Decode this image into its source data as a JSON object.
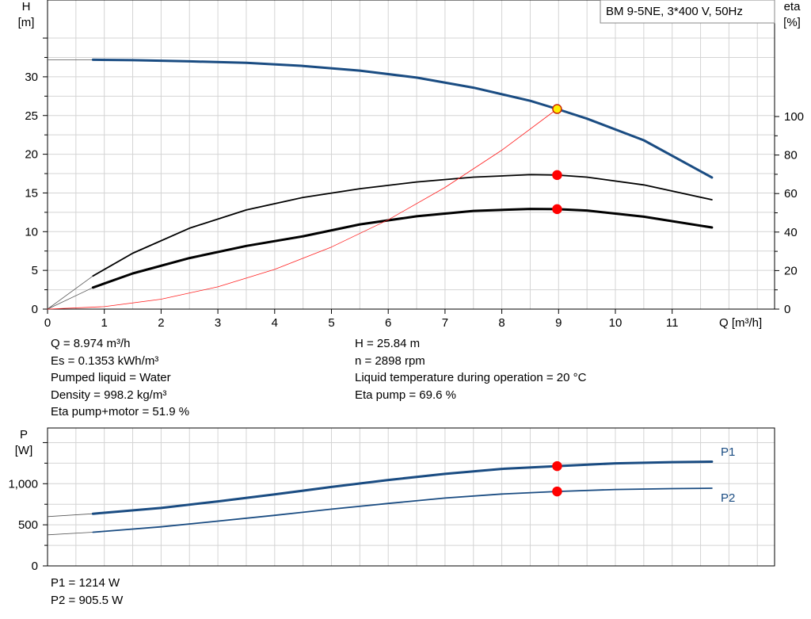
{
  "chart_data": [
    {
      "type": "line",
      "title": "BM 9-5NE, 3*400 V, 50Hz",
      "xlabel": "Q [m³/h]",
      "ylabel": [
        "H",
        "[m]"
      ],
      "y2label": [
        "eta",
        "[%]"
      ],
      "xlim": [
        0,
        12.8
      ],
      "ylim": [
        0,
        35
      ],
      "y2lim": [
        0,
        112
      ],
      "x_ticks": [
        "0",
        "1",
        "2",
        "3",
        "4",
        "5",
        "6",
        "7",
        "8",
        "9",
        "10",
        "11"
      ],
      "y_ticks": [
        "0",
        "5",
        "10",
        "15",
        "20",
        "25",
        "30"
      ],
      "y2_ticks": [
        "0",
        "20",
        "40",
        "60",
        "80",
        "100"
      ],
      "grid": true,
      "series": [
        {
          "key": "head",
          "axis": "y",
          "color": "#1a4c82",
          "width": 3,
          "x": [
            0.8,
            1.5,
            2.5,
            3.5,
            4.5,
            5.5,
            6.5,
            7.5,
            8.5,
            8.974,
            9.5,
            10.5,
            11.7
          ],
          "y": [
            32.2,
            32.15,
            32.0,
            31.8,
            31.4,
            30.8,
            29.9,
            28.6,
            26.9,
            25.84,
            24.6,
            21.8,
            17.0
          ],
          "ext_x": [
            0,
            0.8
          ],
          "ext_y": [
            32.2,
            32.2
          ]
        },
        {
          "key": "eta_pump",
          "axis": "y2",
          "color": "#000000",
          "width": 1.8,
          "x": [
            0.8,
            1.5,
            2.5,
            3.5,
            4.5,
            5.5,
            6.5,
            7.5,
            8.5,
            8.974,
            9.5,
            10.5,
            11.7
          ],
          "y": [
            17.2,
            29.0,
            42.0,
            51.5,
            58.0,
            62.5,
            66.0,
            68.5,
            69.8,
            69.6,
            68.5,
            64.5,
            56.8
          ],
          "ext_x": [
            0,
            0.8
          ],
          "ext_y": [
            0,
            17.2
          ]
        },
        {
          "key": "eta_total",
          "axis": "y2",
          "color": "#000000",
          "width": 3,
          "x": [
            0.8,
            1.5,
            2.5,
            3.5,
            4.5,
            5.5,
            6.5,
            7.5,
            8.5,
            8.974,
            9.5,
            10.5,
            11.7
          ],
          "y": [
            11.2,
            18.5,
            26.5,
            32.8,
            37.8,
            44.0,
            48.2,
            51.0,
            52.0,
            51.9,
            51.2,
            48.0,
            42.4
          ],
          "ext_x": [
            0,
            0.8
          ],
          "ext_y": [
            0,
            11.2
          ]
        },
        {
          "key": "system_curve",
          "axis": "y",
          "color": "#ff2020",
          "width": 0.8,
          "x": [
            0,
            1,
            2,
            3,
            4,
            5,
            6,
            7,
            8,
            8.974
          ],
          "y": [
            0,
            0.32,
            1.28,
            2.88,
            5.13,
            8.01,
            11.54,
            15.71,
            20.52,
            25.84
          ]
        }
      ],
      "points": [
        {
          "x": 8.974,
          "y": 25.84,
          "axis": "y",
          "color": "#ffee00",
          "stroke": "#cc2a00"
        },
        {
          "x": 8.974,
          "y": 69.6,
          "axis": "y2",
          "color": "#ff0000",
          "stroke": "#ff0000"
        },
        {
          "x": 8.974,
          "y": 51.9,
          "axis": "y2",
          "color": "#ff0000",
          "stroke": "#ff0000"
        }
      ]
    },
    {
      "type": "line",
      "ylabel": [
        "P",
        "[W]"
      ],
      "xlim": [
        0,
        12.8
      ],
      "ylim": [
        0,
        1500
      ],
      "y_ticks": [
        "0",
        "500",
        "1,000"
      ],
      "grid": true,
      "series": [
        {
          "name": "P1",
          "color": "#1a4c82",
          "width": 3,
          "x": [
            0.8,
            2,
            3,
            4,
            5,
            6,
            7,
            8,
            8.974,
            10,
            11,
            11.7
          ],
          "y": [
            635,
            705,
            785,
            870,
            960,
            1045,
            1120,
            1180,
            1214,
            1248,
            1262,
            1268
          ],
          "ext_x": [
            0,
            0.8
          ],
          "ext_y": [
            600,
            635
          ]
        },
        {
          "name": "P2",
          "color": "#1a4c82",
          "width": 1.8,
          "x": [
            0.8,
            2,
            3,
            4,
            5,
            6,
            7,
            8,
            8.974,
            10,
            11,
            11.7
          ],
          "y": [
            410,
            475,
            545,
            615,
            690,
            760,
            825,
            875,
            905.5,
            930,
            940,
            945
          ],
          "ext_x": [
            0,
            0.8
          ],
          "ext_y": [
            378,
            410
          ]
        }
      ],
      "points": [
        {
          "x": 8.974,
          "y": 1214,
          "color": "#ff0000",
          "stroke": "#ff0000"
        },
        {
          "x": 8.974,
          "y": 905.5,
          "color": "#ff0000",
          "stroke": "#ff0000"
        }
      ]
    }
  ],
  "info_left": [
    "Q = 8.974 m³/h",
    "Es = 0.1353 kWh/m³",
    "Pumped liquid = Water",
    "Density = 998.2 kg/m³",
    "Eta pump+motor = 51.9 %"
  ],
  "info_right": [
    "H = 25.84 m",
    "n = 2898 rpm",
    "Liquid temperature during operation = 20 °C",
    "Eta pump = 69.6 %"
  ],
  "power_values": [
    "P1 = 1214 W",
    "P2 = 905.5 W"
  ]
}
